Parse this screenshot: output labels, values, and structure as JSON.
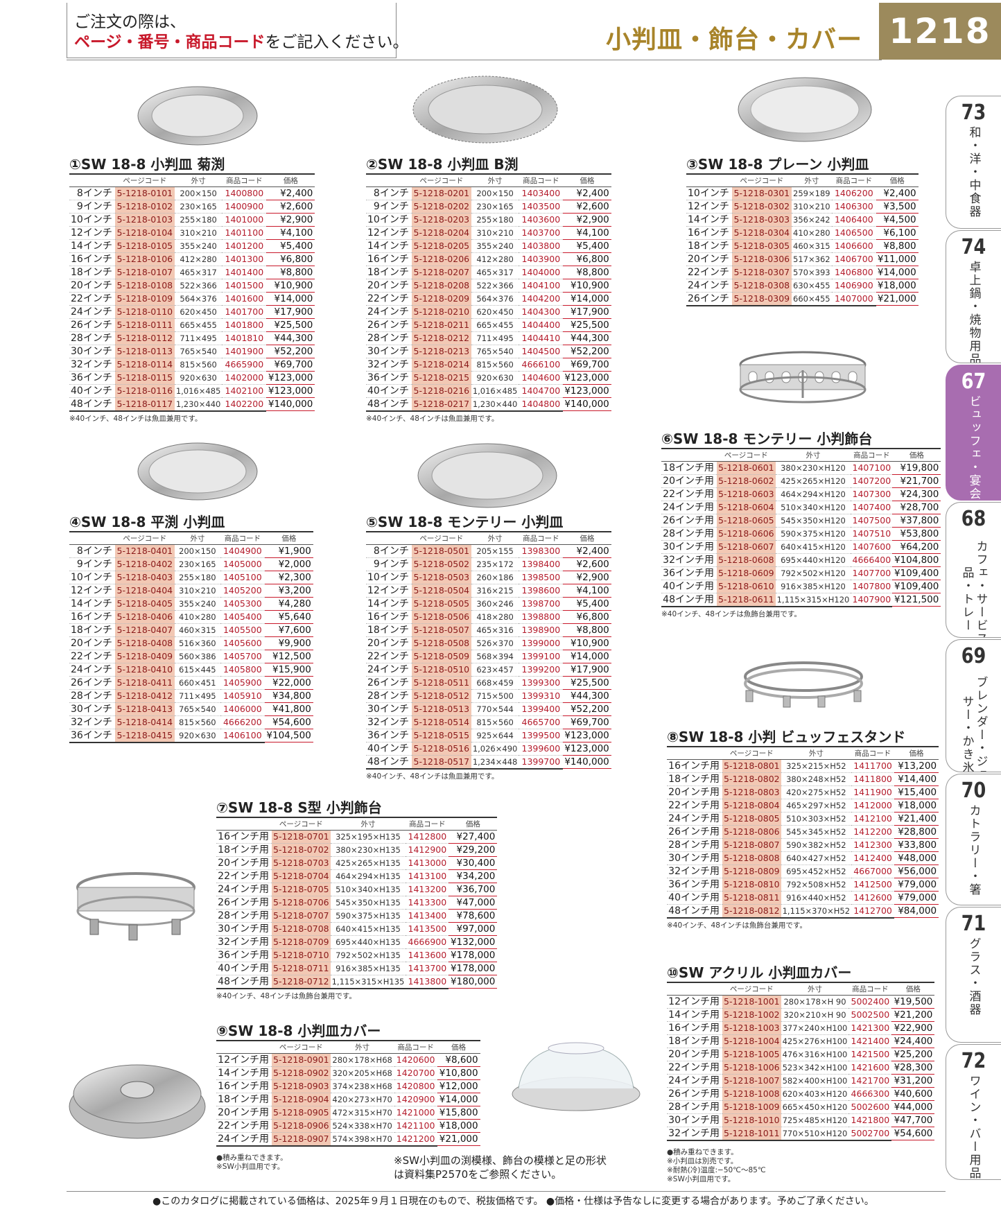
{
  "header": {
    "notice_line1": "ご注文の際は、",
    "notice_red": "ページ・番号・商品コード",
    "notice_rest": "をご記入ください。",
    "title": "小判皿・飾台・カバー",
    "page": "1218"
  },
  "tabs": [
    {
      "num": "73",
      "label": "和・洋・中食器"
    },
    {
      "num": "74",
      "label": "卓上鍋・焼物用品"
    },
    {
      "num": "67",
      "label": "ビュッフェ・宴会"
    },
    {
      "num": "68",
      "label": "カフェ・サービス用品・トレー"
    },
    {
      "num": "69",
      "label": "ブレンダー・ジューサー・かき氷"
    },
    {
      "num": "70",
      "label": "カトラリー・箸"
    },
    {
      "num": "71",
      "label": "グラス・酒器"
    },
    {
      "num": "72",
      "label": "ワイン・バー用品"
    }
  ],
  "headers": {
    "page_code": "ページコード",
    "dims": "外寸",
    "product_code": "商品コード",
    "price": "価格"
  },
  "products": [
    {
      "title": "①SW 18-8 小判皿 菊渕",
      "note": "※40インチ、48インチは魚皿兼用です。",
      "rows": [
        [
          "8インチ",
          "5-1218-0101",
          "200×150",
          "1400800",
          "¥2,400"
        ],
        [
          "9インチ",
          "5-1218-0102",
          "230×165",
          "1400900",
          "¥2,600"
        ],
        [
          "10インチ",
          "5-1218-0103",
          "255×180",
          "1401000",
          "¥2,900"
        ],
        [
          "12インチ",
          "5-1218-0104",
          "310×210",
          "1401100",
          "¥4,100"
        ],
        [
          "14インチ",
          "5-1218-0105",
          "355×240",
          "1401200",
          "¥5,400"
        ],
        [
          "16インチ",
          "5-1218-0106",
          "412×280",
          "1401300",
          "¥6,800"
        ],
        [
          "18インチ",
          "5-1218-0107",
          "465×317",
          "1401400",
          "¥8,800"
        ],
        [
          "20インチ",
          "5-1218-0108",
          "522×366",
          "1401500",
          "¥10,900"
        ],
        [
          "22インチ",
          "5-1218-0109",
          "564×376",
          "1401600",
          "¥14,000"
        ],
        [
          "24インチ",
          "5-1218-0110",
          "620×450",
          "1401700",
          "¥17,900"
        ],
        [
          "26インチ",
          "5-1218-0111",
          "665×455",
          "1401800",
          "¥25,500"
        ],
        [
          "28インチ",
          "5-1218-0112",
          "711×495",
          "1401810",
          "¥44,300"
        ],
        [
          "30インチ",
          "5-1218-0113",
          "765×540",
          "1401900",
          "¥52,200"
        ],
        [
          "32インチ",
          "5-1218-0114",
          "815×560",
          "4665900",
          "¥69,700"
        ],
        [
          "36インチ",
          "5-1218-0115",
          "920×630",
          "1402000",
          "¥123,000"
        ],
        [
          "40インチ",
          "5-1218-0116",
          "1,016×485",
          "1402100",
          "¥123,000"
        ],
        [
          "48インチ",
          "5-1218-0117",
          "1,230×440",
          "1402200",
          "¥140,000"
        ]
      ]
    },
    {
      "title": "②SW 18-8 小判皿 B渕",
      "note": "※40インチ、48インチは魚皿兼用です。",
      "rows": [
        [
          "8インチ",
          "5-1218-0201",
          "200×150",
          "1403400",
          "¥2,400"
        ],
        [
          "9インチ",
          "5-1218-0202",
          "230×165",
          "1403500",
          "¥2,600"
        ],
        [
          "10インチ",
          "5-1218-0203",
          "255×180",
          "1403600",
          "¥2,900"
        ],
        [
          "12インチ",
          "5-1218-0204",
          "310×210",
          "1403700",
          "¥4,100"
        ],
        [
          "14インチ",
          "5-1218-0205",
          "355×240",
          "1403800",
          "¥5,400"
        ],
        [
          "16インチ",
          "5-1218-0206",
          "412×280",
          "1403900",
          "¥6,800"
        ],
        [
          "18インチ",
          "5-1218-0207",
          "465×317",
          "1404000",
          "¥8,800"
        ],
        [
          "20インチ",
          "5-1218-0208",
          "522×366",
          "1404100",
          "¥10,900"
        ],
        [
          "22インチ",
          "5-1218-0209",
          "564×376",
          "1404200",
          "¥14,000"
        ],
        [
          "24インチ",
          "5-1218-0210",
          "620×450",
          "1404300",
          "¥17,900"
        ],
        [
          "26インチ",
          "5-1218-0211",
          "665×455",
          "1404400",
          "¥25,500"
        ],
        [
          "28インチ",
          "5-1218-0212",
          "711×495",
          "1404410",
          "¥44,300"
        ],
        [
          "30インチ",
          "5-1218-0213",
          "765×540",
          "1404500",
          "¥52,200"
        ],
        [
          "32インチ",
          "5-1218-0214",
          "815×560",
          "4666100",
          "¥69,700"
        ],
        [
          "36インチ",
          "5-1218-0215",
          "920×630",
          "1404600",
          "¥123,000"
        ],
        [
          "40インチ",
          "5-1218-0216",
          "1,016×485",
          "1404700",
          "¥123,000"
        ],
        [
          "48インチ",
          "5-1218-0217",
          "1,230×440",
          "1404800",
          "¥140,000"
        ]
      ]
    },
    {
      "title": "③SW 18-8 プレーン 小判皿",
      "note": "",
      "rows": [
        [
          "10インチ",
          "5-1218-0301",
          "259×189",
          "1406200",
          "¥2,400"
        ],
        [
          "12インチ",
          "5-1218-0302",
          "310×210",
          "1406300",
          "¥3,500"
        ],
        [
          "14インチ",
          "5-1218-0303",
          "356×242",
          "1406400",
          "¥4,500"
        ],
        [
          "16インチ",
          "5-1218-0304",
          "410×280",
          "1406500",
          "¥6,100"
        ],
        [
          "18インチ",
          "5-1218-0305",
          "460×315",
          "1406600",
          "¥8,800"
        ],
        [
          "20インチ",
          "5-1218-0306",
          "517×362",
          "1406700",
          "¥11,000"
        ],
        [
          "22インチ",
          "5-1218-0307",
          "570×393",
          "1406800",
          "¥14,000"
        ],
        [
          "24インチ",
          "5-1218-0308",
          "630×455",
          "1406900",
          "¥18,000"
        ],
        [
          "26インチ",
          "5-1218-0309",
          "660×455",
          "1407000",
          "¥21,000"
        ]
      ]
    },
    {
      "title": "④SW 18-8 平渕 小判皿",
      "note": "",
      "rows": [
        [
          "8インチ",
          "5-1218-0401",
          "200×150",
          "1404900",
          "¥1,900"
        ],
        [
          "9インチ",
          "5-1218-0402",
          "230×165",
          "1405000",
          "¥2,000"
        ],
        [
          "10インチ",
          "5-1218-0403",
          "255×180",
          "1405100",
          "¥2,300"
        ],
        [
          "12インチ",
          "5-1218-0404",
          "310×210",
          "1405200",
          "¥3,200"
        ],
        [
          "14インチ",
          "5-1218-0405",
          "355×240",
          "1405300",
          "¥4,280"
        ],
        [
          "16インチ",
          "5-1218-0406",
          "410×280",
          "1405400",
          "¥5,640"
        ],
        [
          "18インチ",
          "5-1218-0407",
          "460×315",
          "1405500",
          "¥7,600"
        ],
        [
          "20インチ",
          "5-1218-0408",
          "516×360",
          "1405600",
          "¥9,900"
        ],
        [
          "22インチ",
          "5-1218-0409",
          "560×386",
          "1405700",
          "¥12,500"
        ],
        [
          "24インチ",
          "5-1218-0410",
          "615×445",
          "1405800",
          "¥15,900"
        ],
        [
          "26インチ",
          "5-1218-0411",
          "660×451",
          "1405900",
          "¥22,000"
        ],
        [
          "28インチ",
          "5-1218-0412",
          "711×495",
          "1405910",
          "¥34,800"
        ],
        [
          "30インチ",
          "5-1218-0413",
          "765×540",
          "1406000",
          "¥41,800"
        ],
        [
          "32インチ",
          "5-1218-0414",
          "815×560",
          "4666200",
          "¥54,600"
        ],
        [
          "36インチ",
          "5-1218-0415",
          "920×630",
          "1406100",
          "¥104,500"
        ]
      ]
    },
    {
      "title": "⑤SW 18-8 モンテリー 小判皿",
      "note": "※40インチ、48インチは魚皿兼用です。",
      "rows": [
        [
          "8インチ",
          "5-1218-0501",
          "205×155",
          "1398300",
          "¥2,400"
        ],
        [
          "9インチ",
          "5-1218-0502",
          "235×172",
          "1398400",
          "¥2,600"
        ],
        [
          "10インチ",
          "5-1218-0503",
          "260×186",
          "1398500",
          "¥2,900"
        ],
        [
          "12インチ",
          "5-1218-0504",
          "316×215",
          "1398600",
          "¥4,100"
        ],
        [
          "14インチ",
          "5-1218-0505",
          "360×246",
          "1398700",
          "¥5,400"
        ],
        [
          "16インチ",
          "5-1218-0506",
          "418×280",
          "1398800",
          "¥6,800"
        ],
        [
          "18インチ",
          "5-1218-0507",
          "465×316",
          "1398900",
          "¥8,800"
        ],
        [
          "20インチ",
          "5-1218-0508",
          "526×370",
          "1399000",
          "¥10,900"
        ],
        [
          "22インチ",
          "5-1218-0509",
          "568×394",
          "1399100",
          "¥14,000"
        ],
        [
          "24インチ",
          "5-1218-0510",
          "623×457",
          "1399200",
          "¥17,900"
        ],
        [
          "26インチ",
          "5-1218-0511",
          "668×459",
          "1399300",
          "¥25,500"
        ],
        [
          "28インチ",
          "5-1218-0512",
          "715×500",
          "1399310",
          "¥44,300"
        ],
        [
          "30インチ",
          "5-1218-0513",
          "770×544",
          "1399400",
          "¥52,200"
        ],
        [
          "32インチ",
          "5-1218-0514",
          "815×560",
          "4665700",
          "¥69,700"
        ],
        [
          "36インチ",
          "5-1218-0515",
          "925×644",
          "1399500",
          "¥123,000"
        ],
        [
          "40インチ",
          "5-1218-0516",
          "1,026×490",
          "1399600",
          "¥123,000"
        ],
        [
          "48インチ",
          "5-1218-0517",
          "1,234×448",
          "1399700",
          "¥140,000"
        ]
      ]
    },
    {
      "title": "⑥SW 18-8 モンテリー 小判飾台",
      "note": "※40インチ、48インチは魚飾台兼用です。",
      "rows": [
        [
          "18インチ用",
          "5-1218-0601",
          "380×230×H120",
          "1407100",
          "¥19,800"
        ],
        [
          "20インチ用",
          "5-1218-0602",
          "425×265×H120",
          "1407200",
          "¥21,700"
        ],
        [
          "22インチ用",
          "5-1218-0603",
          "464×294×H120",
          "1407300",
          "¥24,300"
        ],
        [
          "24インチ用",
          "5-1218-0604",
          "510×340×H120",
          "1407400",
          "¥28,700"
        ],
        [
          "26インチ用",
          "5-1218-0605",
          "545×350×H120",
          "1407500",
          "¥37,800"
        ],
        [
          "28インチ用",
          "5-1218-0606",
          "590×375×H120",
          "1407510",
          "¥53,800"
        ],
        [
          "30インチ用",
          "5-1218-0607",
          "640×415×H120",
          "1407600",
          "¥64,200"
        ],
        [
          "32インチ用",
          "5-1218-0608",
          "695×440×H120",
          "4666400",
          "¥104,800"
        ],
        [
          "36インチ用",
          "5-1218-0609",
          "792×502×H120",
          "1407700",
          "¥109,400"
        ],
        [
          "40インチ用",
          "5-1218-0610",
          "916×385×H120",
          "1407800",
          "¥109,400"
        ],
        [
          "48インチ用",
          "5-1218-0611",
          "1,115×315×H120",
          "1407900",
          "¥121,500"
        ]
      ]
    },
    {
      "title": "⑦SW 18-8 S型 小判飾台",
      "note": "※40インチ、48インチは魚飾台兼用です。",
      "rows": [
        [
          "16インチ用",
          "5-1218-0701",
          "325×195×H135",
          "1412800",
          "¥27,400"
        ],
        [
          "18インチ用",
          "5-1218-0702",
          "380×230×H135",
          "1412900",
          "¥29,200"
        ],
        [
          "20インチ用",
          "5-1218-0703",
          "425×265×H135",
          "1413000",
          "¥30,400"
        ],
        [
          "22インチ用",
          "5-1218-0704",
          "464×294×H135",
          "1413100",
          "¥34,200"
        ],
        [
          "24インチ用",
          "5-1218-0705",
          "510×340×H135",
          "1413200",
          "¥36,700"
        ],
        [
          "26インチ用",
          "5-1218-0706",
          "545×350×H135",
          "1413300",
          "¥47,000"
        ],
        [
          "28インチ用",
          "5-1218-0707",
          "590×375×H135",
          "1413400",
          "¥78,600"
        ],
        [
          "30インチ用",
          "5-1218-0708",
          "640×415×H135",
          "1413500",
          "¥97,000"
        ],
        [
          "32インチ用",
          "5-1218-0709",
          "695×440×H135",
          "4666900",
          "¥132,000"
        ],
        [
          "36インチ用",
          "5-1218-0710",
          "792×502×H135",
          "1413600",
          "¥178,000"
        ],
        [
          "40インチ用",
          "5-1218-0711",
          "916×385×H135",
          "1413700",
          "¥178,000"
        ],
        [
          "48インチ用",
          "5-1218-0712",
          "1,115×315×H135",
          "1413800",
          "¥180,000"
        ]
      ]
    },
    {
      "title": "⑧SW 18-8 小判 ビュッフェスタンド",
      "note": "※40インチ、48インチは魚飾台兼用です。",
      "rows": [
        [
          "16インチ用",
          "5-1218-0801",
          "325×215×H52",
          "1411700",
          "¥13,200"
        ],
        [
          "18インチ用",
          "5-1218-0802",
          "380×248×H52",
          "1411800",
          "¥14,400"
        ],
        [
          "20インチ用",
          "5-1218-0803",
          "420×275×H52",
          "1411900",
          "¥15,400"
        ],
        [
          "22インチ用",
          "5-1218-0804",
          "465×297×H52",
          "1412000",
          "¥18,000"
        ],
        [
          "24インチ用",
          "5-1218-0805",
          "510×303×H52",
          "1412100",
          "¥21,400"
        ],
        [
          "26インチ用",
          "5-1218-0806",
          "545×345×H52",
          "1412200",
          "¥28,800"
        ],
        [
          "28インチ用",
          "5-1218-0807",
          "590×382×H52",
          "1412300",
          "¥33,800"
        ],
        [
          "30インチ用",
          "5-1218-0808",
          "640×427×H52",
          "1412400",
          "¥48,000"
        ],
        [
          "32インチ用",
          "5-1218-0809",
          "695×452×H52",
          "4667000",
          "¥56,000"
        ],
        [
          "36インチ用",
          "5-1218-0810",
          "792×508×H52",
          "1412500",
          "¥79,000"
        ],
        [
          "40インチ用",
          "5-1218-0811",
          "916×440×H52",
          "1412600",
          "¥79,000"
        ],
        [
          "48インチ用",
          "5-1218-0812",
          "1,115×370×H52",
          "1412700",
          "¥84,000"
        ]
      ]
    },
    {
      "title": "⑨SW 18-8 小判皿カバー",
      "note": "●積み重ねできます。\n※SW小判皿用です。",
      "rows": [
        [
          "12インチ用",
          "5-1218-0901",
          "280×178×H68",
          "1420600",
          "¥8,600"
        ],
        [
          "14インチ用",
          "5-1218-0902",
          "320×205×H68",
          "1420700",
          "¥10,800"
        ],
        [
          "16インチ用",
          "5-1218-0903",
          "374×238×H68",
          "1420800",
          "¥12,000"
        ],
        [
          "18インチ用",
          "5-1218-0904",
          "420×273×H70",
          "1420900",
          "¥14,000"
        ],
        [
          "20インチ用",
          "5-1218-0905",
          "472×315×H70",
          "1421000",
          "¥15,800"
        ],
        [
          "22インチ用",
          "5-1218-0906",
          "524×338×H70",
          "1421100",
          "¥18,000"
        ],
        [
          "24インチ用",
          "5-1218-0907",
          "574×398×H70",
          "1421200",
          "¥21,000"
        ]
      ]
    },
    {
      "title": "⑩SW アクリル 小判皿カバー",
      "note": "●積み重ねできます。\n※小判皿は別売です。\n※耐熱(冷)温度:−50℃〜85℃\n※SW小判皿用です。",
      "rows": [
        [
          "12インチ用",
          "5-1218-1001",
          "280×178×H 90",
          "5002400",
          "¥19,500"
        ],
        [
          "14インチ用",
          "5-1218-1002",
          "320×210×H 90",
          "5002500",
          "¥21,200"
        ],
        [
          "16インチ用",
          "5-1218-1003",
          "377×240×H100",
          "1421300",
          "¥22,900"
        ],
        [
          "18インチ用",
          "5-1218-1004",
          "425×276×H100",
          "1421400",
          "¥24,400"
        ],
        [
          "20インチ用",
          "5-1218-1005",
          "476×316×H100",
          "1421500",
          "¥25,200"
        ],
        [
          "22インチ用",
          "5-1218-1006",
          "523×342×H100",
          "1421600",
          "¥28,300"
        ],
        [
          "24インチ用",
          "5-1218-1007",
          "582×400×H100",
          "1421700",
          "¥31,200"
        ],
        [
          "26インチ用",
          "5-1218-1008",
          "620×403×H120",
          "4666300",
          "¥40,600"
        ],
        [
          "28インチ用",
          "5-1218-1009",
          "665×450×H120",
          "5002600",
          "¥44,000"
        ],
        [
          "30インチ用",
          "5-1218-1010",
          "725×485×H120",
          "1421800",
          "¥47,700"
        ],
        [
          "32インチ用",
          "5-1218-1011",
          "770×510×H120",
          "5002700",
          "¥54,600"
        ]
      ]
    }
  ],
  "ref_note": "※SW小判皿の渕模様、飾台の模様と足の形状は資料集P2570をご参照ください。",
  "footer": "●このカタログに掲載されている価格は、2025年９月１日現在のもので、税抜価格です。 ●価格・仕様は予告なしに変更する場合があります。予めご了承ください。"
}
